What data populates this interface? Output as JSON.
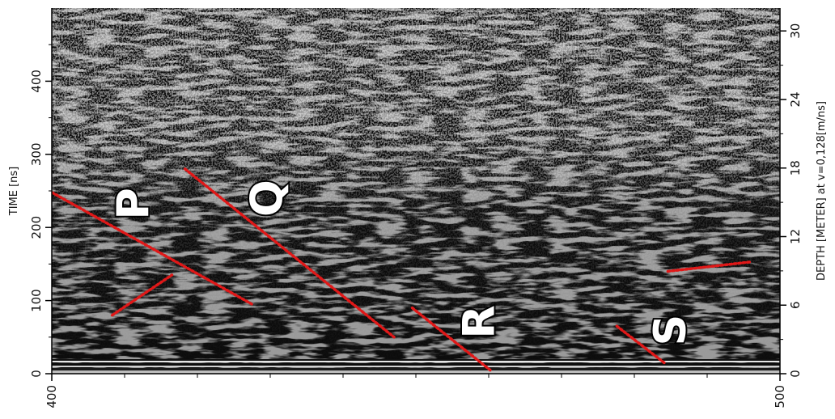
{
  "chart_data": {
    "type": "radargram",
    "title": "",
    "orientation": "rotated-90-ccw",
    "x_axis": {
      "position": "bottom (printed rotated)",
      "range": [
        400,
        500
      ],
      "ticks": [
        400,
        500
      ],
      "label": ""
    },
    "time_axis": {
      "position": "left",
      "label": "TIME [ns]",
      "unit": "ns",
      "range": [
        0,
        500
      ],
      "ticks": [
        0,
        100,
        200,
        300,
        400
      ]
    },
    "depth_axis": {
      "position": "right",
      "label": "DEPTH [METER] at v=0,128[m/ns]",
      "unit": "m",
      "velocity_m_per_ns": 0.128,
      "range": [
        0,
        32
      ],
      "ticks": [
        0,
        6,
        12,
        18,
        24,
        30
      ]
    },
    "reflectors": [
      {
        "label": "P",
        "color": "#e01818",
        "segments": [
          {
            "x": [
              400.0,
              427.5
            ],
            "time_ns": [
              248,
              95
            ]
          },
          {
            "x": [
              408.3,
              416.5
            ],
            "time_ns": [
              80,
              135
            ]
          }
        ]
      },
      {
        "label": "Q",
        "color": "#e01818",
        "segments": [
          {
            "x": [
              418.3,
              447.0
            ],
            "time_ns": [
              280,
              50
            ]
          }
        ]
      },
      {
        "label": "R",
        "color": "#e01818",
        "segments": [
          {
            "x": [
              449.5,
              460.2
            ],
            "time_ns": [
              90,
              5
            ]
          }
        ]
      },
      {
        "label": "S",
        "color": "#e01818",
        "segments": [
          {
            "x": [
              477.6,
              484.1
            ],
            "time_ns": [
              65,
              15
            ]
          },
          {
            "x": [
              484.6,
              496.1
            ],
            "time_ns": [
              140,
              153
            ]
          }
        ]
      }
    ],
    "image_style": "grayscale banded GPR reflection texture, noisy at late times, strong horizontal direct-wave bands near 0 ns"
  }
}
